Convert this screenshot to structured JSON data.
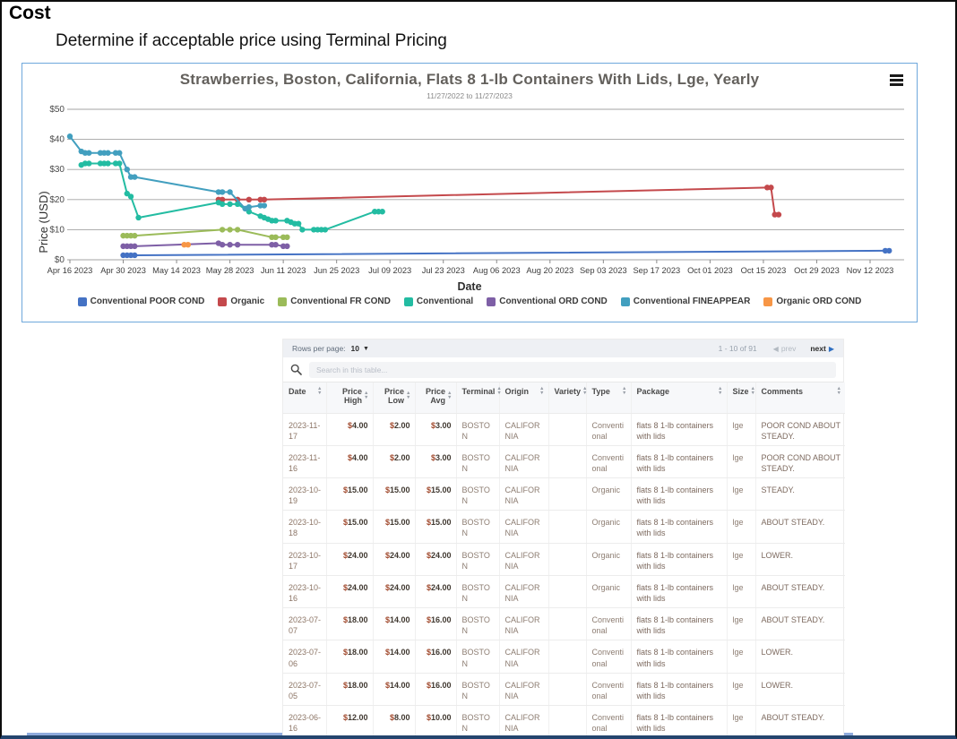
{
  "page": {
    "title": "Cost",
    "subtitle": "Determine if acceptable price using Terminal Pricing"
  },
  "chart_data": {
    "type": "line",
    "title": "Strawberries, Boston, California, Flats 8 1-lb Containers With Lids, Lge, Yearly",
    "subtitle": "11/27/2022 to 11/27/2023",
    "xlabel": "Date",
    "ylabel": "Price (USD)",
    "ylim": [
      0,
      50
    ],
    "y_ticks": [
      "$0",
      "$10",
      "$20",
      "$30",
      "$40",
      "$50"
    ],
    "x_start": "2023-04-16",
    "x_tick_interval_days": 14,
    "x_ticks": [
      "Apr 16 2023",
      "Apr 30 2023",
      "May 14 2023",
      "May 28 2023",
      "Jun 11 2023",
      "Jun 25 2023",
      "Jul 09 2023",
      "Jul 23 2023",
      "Aug 06 2023",
      "Aug 20 2023",
      "Sep 03 2023",
      "Sep 17 2023",
      "Oct 01 2023",
      "Oct 15 2023",
      "Oct 29 2023",
      "Nov 12 2023"
    ],
    "grid": "horizontal",
    "legend_position": "bottom",
    "series": [
      {
        "name": "Conventional POOR COND",
        "color": "#4472C4",
        "points": [
          [
            "2023-04-30",
            1.5
          ],
          [
            "2023-05-01",
            1.5
          ],
          [
            "2023-05-02",
            1.5
          ],
          [
            "2023-05-03",
            1.5
          ],
          [
            "2023-11-16",
            3
          ],
          [
            "2023-11-17",
            3
          ]
        ]
      },
      {
        "name": "Organic",
        "color": "#C4494C",
        "points": [
          [
            "2023-05-25",
            20
          ],
          [
            "2023-05-26",
            20
          ],
          [
            "2023-05-30",
            20
          ],
          [
            "2023-06-02",
            20
          ],
          [
            "2023-06-05",
            20
          ],
          [
            "2023-06-06",
            20
          ],
          [
            "2023-10-16",
            24
          ],
          [
            "2023-10-17",
            24
          ],
          [
            "2023-10-18",
            15
          ],
          [
            "2023-10-19",
            15
          ]
        ]
      },
      {
        "name": "Conventional FR COND",
        "color": "#9BBB59",
        "points": [
          [
            "2023-04-30",
            8
          ],
          [
            "2023-05-01",
            8
          ],
          [
            "2023-05-02",
            8
          ],
          [
            "2023-05-03",
            8
          ],
          [
            "2023-05-26",
            10
          ],
          [
            "2023-05-28",
            10
          ],
          [
            "2023-05-30",
            10
          ],
          [
            "2023-06-08",
            7.5
          ],
          [
            "2023-06-09",
            7.5
          ],
          [
            "2023-06-11",
            7.5
          ],
          [
            "2023-06-12",
            7.5
          ]
        ]
      },
      {
        "name": "Conventional",
        "color": "#23BCA2",
        "points": [
          [
            "2023-04-19",
            31.5
          ],
          [
            "2023-04-20",
            32
          ],
          [
            "2023-04-21",
            32
          ],
          [
            "2023-04-24",
            32
          ],
          [
            "2023-04-25",
            32
          ],
          [
            "2023-04-26",
            32
          ],
          [
            "2023-04-28",
            32
          ],
          [
            "2023-04-29",
            32
          ],
          [
            "2023-05-01",
            22
          ],
          [
            "2023-05-02",
            21
          ],
          [
            "2023-05-04",
            14
          ],
          [
            "2023-05-25",
            19
          ],
          [
            "2023-05-26",
            18.5
          ],
          [
            "2023-05-28",
            18.5
          ],
          [
            "2023-05-30",
            18.5
          ],
          [
            "2023-06-02",
            16
          ],
          [
            "2023-06-05",
            14.5
          ],
          [
            "2023-06-06",
            14
          ],
          [
            "2023-06-07",
            13.5
          ],
          [
            "2023-06-08",
            13
          ],
          [
            "2023-06-09",
            13
          ],
          [
            "2023-06-12",
            13
          ],
          [
            "2023-06-13",
            12.5
          ],
          [
            "2023-06-14",
            12
          ],
          [
            "2023-06-15",
            12
          ],
          [
            "2023-06-16",
            10
          ],
          [
            "2023-06-19",
            10
          ],
          [
            "2023-06-20",
            10
          ],
          [
            "2023-06-21",
            10
          ],
          [
            "2023-06-22",
            10
          ],
          [
            "2023-07-05",
            16
          ],
          [
            "2023-07-06",
            16
          ],
          [
            "2023-07-07",
            16
          ]
        ]
      },
      {
        "name": "Conventional ORD COND",
        "color": "#7E5FA6",
        "points": [
          [
            "2023-04-30",
            4.5
          ],
          [
            "2023-05-01",
            4.5
          ],
          [
            "2023-05-02",
            4.5
          ],
          [
            "2023-05-03",
            4.5
          ],
          [
            "2023-05-25",
            5.5
          ],
          [
            "2023-05-26",
            5
          ],
          [
            "2023-05-28",
            5
          ],
          [
            "2023-05-30",
            5
          ],
          [
            "2023-06-08",
            5
          ],
          [
            "2023-06-09",
            5
          ],
          [
            "2023-06-11",
            4.5
          ],
          [
            "2023-06-12",
            4.5
          ]
        ]
      },
      {
        "name": "Conventional FINEAPPEAR",
        "color": "#429FBF",
        "points": [
          [
            "2023-04-16",
            41
          ],
          [
            "2023-04-19",
            36
          ],
          [
            "2023-04-20",
            35.5
          ],
          [
            "2023-04-21",
            35.5
          ],
          [
            "2023-04-24",
            35.5
          ],
          [
            "2023-04-25",
            35.5
          ],
          [
            "2023-04-26",
            35.5
          ],
          [
            "2023-04-28",
            35.5
          ],
          [
            "2023-04-29",
            35.5
          ],
          [
            "2023-05-01",
            30
          ],
          [
            "2023-05-02",
            27.5
          ],
          [
            "2023-05-03",
            27.5
          ],
          [
            "2023-05-25",
            22.5
          ],
          [
            "2023-05-26",
            22.5
          ],
          [
            "2023-05-28",
            22.5
          ],
          [
            "2023-06-01",
            17
          ],
          [
            "2023-06-02",
            17.5
          ],
          [
            "2023-06-05",
            18
          ],
          [
            "2023-06-06",
            18
          ]
        ]
      },
      {
        "name": "Organic ORD COND",
        "color": "#F79646",
        "points": [
          [
            "2023-05-16",
            5
          ],
          [
            "2023-05-17",
            5
          ]
        ]
      }
    ]
  },
  "table": {
    "rows_per_page_label": "Rows per page:",
    "rows_per_page_value": "10",
    "range_text": "1 - 10 of 91",
    "prev_label": "prev",
    "next_label": "next",
    "search_placeholder": "Search in this table...",
    "columns": [
      "Date",
      "Price High",
      "Price Low",
      "Price Avg",
      "Terminal",
      "Origin",
      "Variety",
      "Type",
      "Package",
      "Size",
      "Comments"
    ],
    "rows": [
      [
        "2023-11-17",
        "$4.00",
        "$2.00",
        "$3.00",
        "BOSTON",
        "CALIFORNIA",
        "",
        "Conventional",
        "flats 8 1-lb containers with lids",
        "lge",
        "POOR COND ABOUT STEADY."
      ],
      [
        "2023-11-16",
        "$4.00",
        "$2.00",
        "$3.00",
        "BOSTON",
        "CALIFORNIA",
        "",
        "Conventional",
        "flats 8 1-lb containers with lids",
        "lge",
        "POOR COND ABOUT STEADY."
      ],
      [
        "2023-10-19",
        "$15.00",
        "$15.00",
        "$15.00",
        "BOSTON",
        "CALIFORNIA",
        "",
        "Organic",
        "flats 8 1-lb containers with lids",
        "lge",
        "STEADY."
      ],
      [
        "2023-10-18",
        "$15.00",
        "$15.00",
        "$15.00",
        "BOSTON",
        "CALIFORNIA",
        "",
        "Organic",
        "flats 8 1-lb containers with lids",
        "lge",
        "ABOUT STEADY."
      ],
      [
        "2023-10-17",
        "$24.00",
        "$24.00",
        "$24.00",
        "BOSTON",
        "CALIFORNIA",
        "",
        "Organic",
        "flats 8 1-lb containers with lids",
        "lge",
        "LOWER."
      ],
      [
        "2023-10-16",
        "$24.00",
        "$24.00",
        "$24.00",
        "BOSTON",
        "CALIFORNIA",
        "",
        "Organic",
        "flats 8 1-lb containers with lids",
        "lge",
        "ABOUT STEADY."
      ],
      [
        "2023-07-07",
        "$18.00",
        "$14.00",
        "$16.00",
        "BOSTON",
        "CALIFORNIA",
        "",
        "Conventional",
        "flats 8 1-lb containers with lids",
        "lge",
        "ABOUT STEADY."
      ],
      [
        "2023-07-06",
        "$18.00",
        "$14.00",
        "$16.00",
        "BOSTON",
        "CALIFORNIA",
        "",
        "Conventional",
        "flats 8 1-lb containers with lids",
        "lge",
        "LOWER."
      ],
      [
        "2023-07-05",
        "$18.00",
        "$14.00",
        "$16.00",
        "BOSTON",
        "CALIFORNIA",
        "",
        "Conventional",
        "flats 8 1-lb containers with lids",
        "lge",
        "LOWER."
      ],
      [
        "2023-06-16",
        "$12.00",
        "$8.00",
        "$10.00",
        "BOSTON",
        "CALIFORNIA",
        "",
        "Conventional",
        "flats 8 1-lb containers with lids",
        "lge",
        "ABOUT STEADY."
      ]
    ]
  }
}
